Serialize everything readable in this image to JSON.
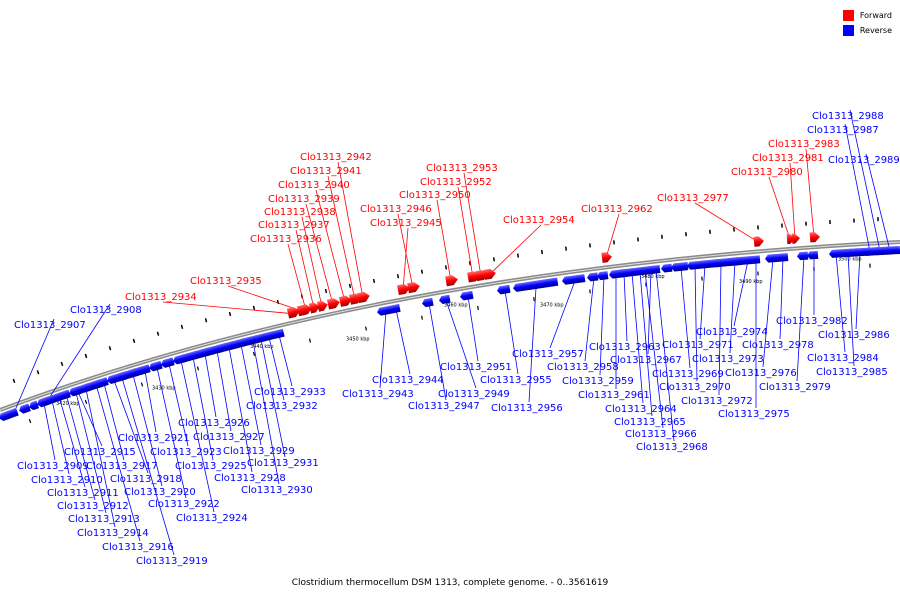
{
  "legend": {
    "forward": {
      "label": "Forward",
      "color": "#ff0000"
    },
    "reverse": {
      "label": "Reverse",
      "color": "#0000ff"
    }
  },
  "caption": "Clostridium thermocellum DSM 1313, complete genome. - 0..3561619",
  "scale_labels": [
    "3420 kbp",
    "3430 kbp",
    "3440 kbp",
    "3450 kbp",
    "3460 kbp",
    "3470 kbp",
    "3480 kbp",
    "3490 kbp",
    "3500 kbp"
  ],
  "genes": [
    {
      "name": "Clo1313_2907",
      "strand": "reverse"
    },
    {
      "name": "Clo1313_2908",
      "strand": "reverse"
    },
    {
      "name": "Clo1313_2909",
      "strand": "reverse"
    },
    {
      "name": "Clo1313_2910",
      "strand": "reverse"
    },
    {
      "name": "Clo1313_2911",
      "strand": "reverse"
    },
    {
      "name": "Clo1313_2912",
      "strand": "reverse"
    },
    {
      "name": "Clo1313_2913",
      "strand": "reverse"
    },
    {
      "name": "Clo1313_2914",
      "strand": "reverse"
    },
    {
      "name": "Clo1313_2915",
      "strand": "reverse"
    },
    {
      "name": "Clo1313_2916",
      "strand": "reverse"
    },
    {
      "name": "Clo1313_2917",
      "strand": "reverse"
    },
    {
      "name": "Clo1313_2918",
      "strand": "reverse"
    },
    {
      "name": "Clo1313_2919",
      "strand": "reverse"
    },
    {
      "name": "Clo1313_2920",
      "strand": "reverse"
    },
    {
      "name": "Clo1313_2921",
      "strand": "reverse"
    },
    {
      "name": "Clo1313_2922",
      "strand": "reverse"
    },
    {
      "name": "Clo1313_2923",
      "strand": "reverse"
    },
    {
      "name": "Clo1313_2924",
      "strand": "reverse"
    },
    {
      "name": "Clo1313_2925",
      "strand": "reverse"
    },
    {
      "name": "Clo1313_2926",
      "strand": "reverse"
    },
    {
      "name": "Clo1313_2927",
      "strand": "reverse"
    },
    {
      "name": "Clo1313_2928",
      "strand": "reverse"
    },
    {
      "name": "Clo1313_2929",
      "strand": "reverse"
    },
    {
      "name": "Clo1313_2930",
      "strand": "reverse"
    },
    {
      "name": "Clo1313_2931",
      "strand": "reverse"
    },
    {
      "name": "Clo1313_2932",
      "strand": "reverse"
    },
    {
      "name": "Clo1313_2933",
      "strand": "reverse"
    },
    {
      "name": "Clo1313_2934",
      "strand": "forward"
    },
    {
      "name": "Clo1313_2935",
      "strand": "forward"
    },
    {
      "name": "Clo1313_2936",
      "strand": "forward"
    },
    {
      "name": "Clo1313_2937",
      "strand": "forward"
    },
    {
      "name": "Clo1313_2938",
      "strand": "forward"
    },
    {
      "name": "Clo1313_2939",
      "strand": "forward"
    },
    {
      "name": "Clo1313_2940",
      "strand": "forward"
    },
    {
      "name": "Clo1313_2941",
      "strand": "forward"
    },
    {
      "name": "Clo1313_2942",
      "strand": "forward"
    },
    {
      "name": "Clo1313_2943",
      "strand": "reverse"
    },
    {
      "name": "Clo1313_2944",
      "strand": "reverse"
    },
    {
      "name": "Clo1313_2945",
      "strand": "forward"
    },
    {
      "name": "Clo1313_2946",
      "strand": "forward"
    },
    {
      "name": "Clo1313_2947",
      "strand": "reverse"
    },
    {
      "name": "Clo1313_2949",
      "strand": "reverse"
    },
    {
      "name": "Clo1313_2950",
      "strand": "forward"
    },
    {
      "name": "Clo1313_2951",
      "strand": "reverse"
    },
    {
      "name": "Clo1313_2952",
      "strand": "forward"
    },
    {
      "name": "Clo1313_2953",
      "strand": "forward"
    },
    {
      "name": "Clo1313_2954",
      "strand": "forward"
    },
    {
      "name": "Clo1313_2955",
      "strand": "reverse"
    },
    {
      "name": "Clo1313_2956",
      "strand": "reverse"
    },
    {
      "name": "Clo1313_2957",
      "strand": "reverse"
    },
    {
      "name": "Clo1313_2958",
      "strand": "reverse"
    },
    {
      "name": "Clo1313_2959",
      "strand": "reverse"
    },
    {
      "name": "Clo1313_2961",
      "strand": "reverse"
    },
    {
      "name": "Clo1313_2962",
      "strand": "forward"
    },
    {
      "name": "Clo1313_2963",
      "strand": "reverse"
    },
    {
      "name": "Clo1313_2964",
      "strand": "reverse"
    },
    {
      "name": "Clo1313_2965",
      "strand": "reverse"
    },
    {
      "name": "Clo1313_2966",
      "strand": "reverse"
    },
    {
      "name": "Clo1313_2967",
      "strand": "reverse"
    },
    {
      "name": "Clo1313_2968",
      "strand": "reverse"
    },
    {
      "name": "Clo1313_2969",
      "strand": "reverse"
    },
    {
      "name": "Clo1313_2970",
      "strand": "reverse"
    },
    {
      "name": "Clo1313_2971",
      "strand": "reverse"
    },
    {
      "name": "Clo1313_2972",
      "strand": "reverse"
    },
    {
      "name": "Clo1313_2973",
      "strand": "reverse"
    },
    {
      "name": "Clo1313_2974",
      "strand": "reverse"
    },
    {
      "name": "Clo1313_2975",
      "strand": "reverse"
    },
    {
      "name": "Clo1313_2976",
      "strand": "reverse"
    },
    {
      "name": "Clo1313_2977",
      "strand": "forward"
    },
    {
      "name": "Clo1313_2978",
      "strand": "reverse"
    },
    {
      "name": "Clo1313_2979",
      "strand": "reverse"
    },
    {
      "name": "Clo1313_2980",
      "strand": "forward"
    },
    {
      "name": "Clo1313_2981",
      "strand": "forward"
    },
    {
      "name": "Clo1313_2982",
      "strand": "reverse"
    },
    {
      "name": "Clo1313_2983",
      "strand": "forward"
    },
    {
      "name": "Clo1313_2984",
      "strand": "reverse"
    },
    {
      "name": "Clo1313_2985",
      "strand": "reverse"
    },
    {
      "name": "Clo1313_2986",
      "strand": "reverse"
    },
    {
      "name": "Clo1313_2987",
      "strand": "reverse"
    },
    {
      "name": "Clo1313_2988",
      "strand": "reverse"
    },
    {
      "name": "Clo1313_2989",
      "strand": "reverse"
    }
  ]
}
